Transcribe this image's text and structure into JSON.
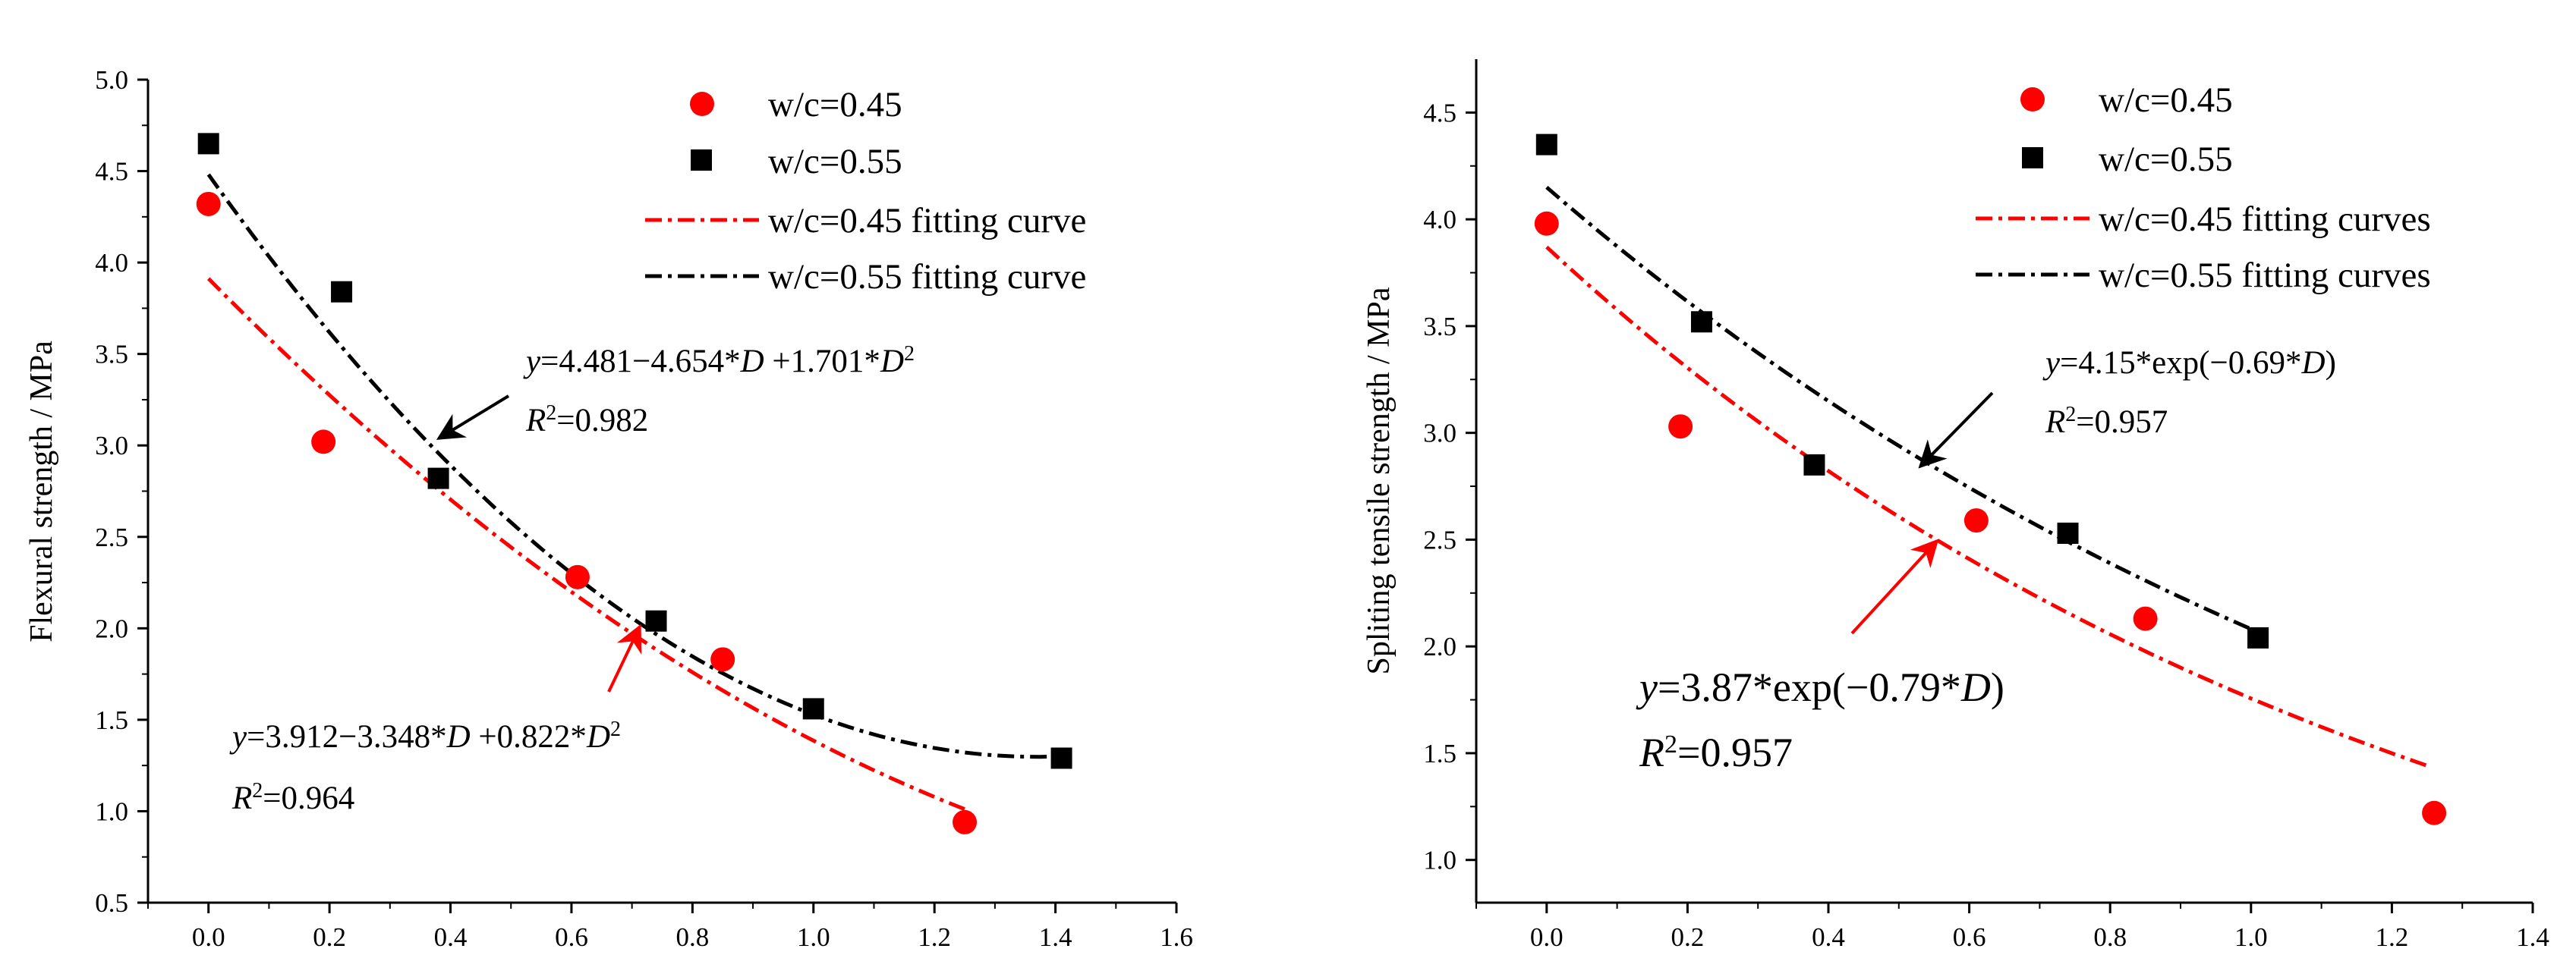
{
  "chart_data": [
    {
      "type": "scatter",
      "ylabel": "Flexural strength / MPa",
      "xlabel": "",
      "xlim": [
        -0.1,
        1.6
      ],
      "ylim": [
        0.5,
        5.0
      ],
      "xticks": [
        "0.0",
        "0.2",
        "0.4",
        "0.6",
        "0.8",
        "1.0",
        "1.2",
        "1.4",
        "1.6"
      ],
      "yticks": [
        "0.5",
        "1.0",
        "1.5",
        "2.0",
        "2.5",
        "3.0",
        "3.5",
        "4.0",
        "4.5",
        "5.0"
      ],
      "legend": {
        "position": "top-right",
        "entries": [
          "w/c=0.45",
          "w/c=0.55",
          "w/c=0.45 fitting curve",
          "w/c=0.55 fitting curve"
        ]
      },
      "series": [
        {
          "name": "w/c=0.45",
          "marker": "circle",
          "color": "#ff0000",
          "x": [
            0.0,
            0.19,
            0.61,
            0.85,
            1.25
          ],
          "y": [
            4.32,
            3.02,
            2.28,
            1.83,
            0.94
          ]
        },
        {
          "name": "w/c=0.55",
          "marker": "square",
          "color": "#000000",
          "x": [
            0.0,
            0.22,
            0.38,
            0.74,
            1.0,
            1.41
          ],
          "y": [
            4.65,
            3.84,
            2.82,
            2.04,
            1.56,
            1.29
          ]
        }
      ],
      "fits": [
        {
          "name": "w/c=0.45 fitting curve",
          "color": "#ff0000",
          "model": "poly2",
          "coef": [
            3.912,
            -3.348,
            0.822
          ],
          "x_range": [
            0.0,
            1.25
          ]
        },
        {
          "name": "w/c=0.55 fitting curve",
          "color": "#000000",
          "model": "poly2",
          "coef": [
            4.481,
            -4.654,
            1.701
          ],
          "x_range": [
            0.0,
            1.41
          ]
        }
      ],
      "annotations": [
        {
          "equation_prefix": "y",
          "equation_rest": "=4.481−4.654*",
          "var1": "D",
          "equation_mid": " +1.701*",
          "var2": "D",
          "sup": "2",
          "r2": "=0.982",
          "color": "#000000",
          "arrow_to": [
            0.38,
            3.0
          ],
          "style": "normal"
        },
        {
          "equation_prefix": "y",
          "equation_rest": "=3.912−3.348*",
          "var1": "D",
          "equation_mid": " +0.822*",
          "var2": "D",
          "sup": "2",
          "r2": "=0.964",
          "color": "#ff0000",
          "arrow_to": [
            0.73,
            2.0
          ],
          "style": "normal"
        }
      ]
    },
    {
      "type": "scatter",
      "ylabel": "Spliting tensile strength / MPa",
      "xlabel": "",
      "xlim": [
        -0.1,
        1.4
      ],
      "ylim": [
        0.8,
        4.75
      ],
      "xticks": [
        "0.0",
        "0.2",
        "0.4",
        "0.6",
        "0.8",
        "1.0",
        "1.2",
        "1.4"
      ],
      "yticks": [
        "1.0",
        "1.5",
        "2.0",
        "2.5",
        "3.0",
        "3.5",
        "4.0",
        "4.5"
      ],
      "legend": {
        "position": "top-right",
        "entries": [
          "w/c=0.45",
          "w/c=0.55",
          "w/c=0.45 fitting curves",
          "w/c=0.55 fitting curves"
        ]
      },
      "series": [
        {
          "name": "w/c=0.45",
          "marker": "circle",
          "color": "#ff0000",
          "x": [
            0.0,
            0.19,
            0.61,
            0.85,
            1.26
          ],
          "y": [
            3.98,
            3.03,
            2.59,
            2.13,
            1.22
          ]
        },
        {
          "name": "w/c=0.55",
          "marker": "square",
          "color": "#000000",
          "x": [
            0.0,
            0.22,
            0.38,
            0.74,
            1.01
          ],
          "y": [
            4.35,
            3.52,
            2.85,
            2.53,
            2.04
          ]
        }
      ],
      "fits": [
        {
          "name": "w/c=0.45 fitting curves",
          "color": "#ff0000",
          "model": "exp",
          "coef": [
            3.87,
            -0.79
          ],
          "x_range": [
            0.0,
            1.25
          ]
        },
        {
          "name": "w/c=0.55 fitting curves",
          "color": "#000000",
          "model": "exp",
          "coef": [
            4.15,
            -0.69
          ],
          "x_range": [
            0.0,
            1.01
          ]
        }
      ],
      "annotations": [
        {
          "equation_prefix": "y",
          "equation_rest": "=4.15*exp(−0.69*",
          "var1": "D",
          "equation_mid": ")",
          "var2": "",
          "sup": "",
          "r2": "=0.957",
          "color": "#000000",
          "arrow_to": [
            0.52,
            2.8
          ],
          "style": "normal"
        },
        {
          "equation_prefix": "y",
          "equation_rest": "=3.87*exp(−0.79*",
          "var1": "D",
          "equation_mid": ")",
          "var2": "",
          "sup": "",
          "r2": "=0.957",
          "color": "#ff0000",
          "arrow_to": [
            0.56,
            2.5
          ],
          "style": "big"
        }
      ]
    }
  ]
}
